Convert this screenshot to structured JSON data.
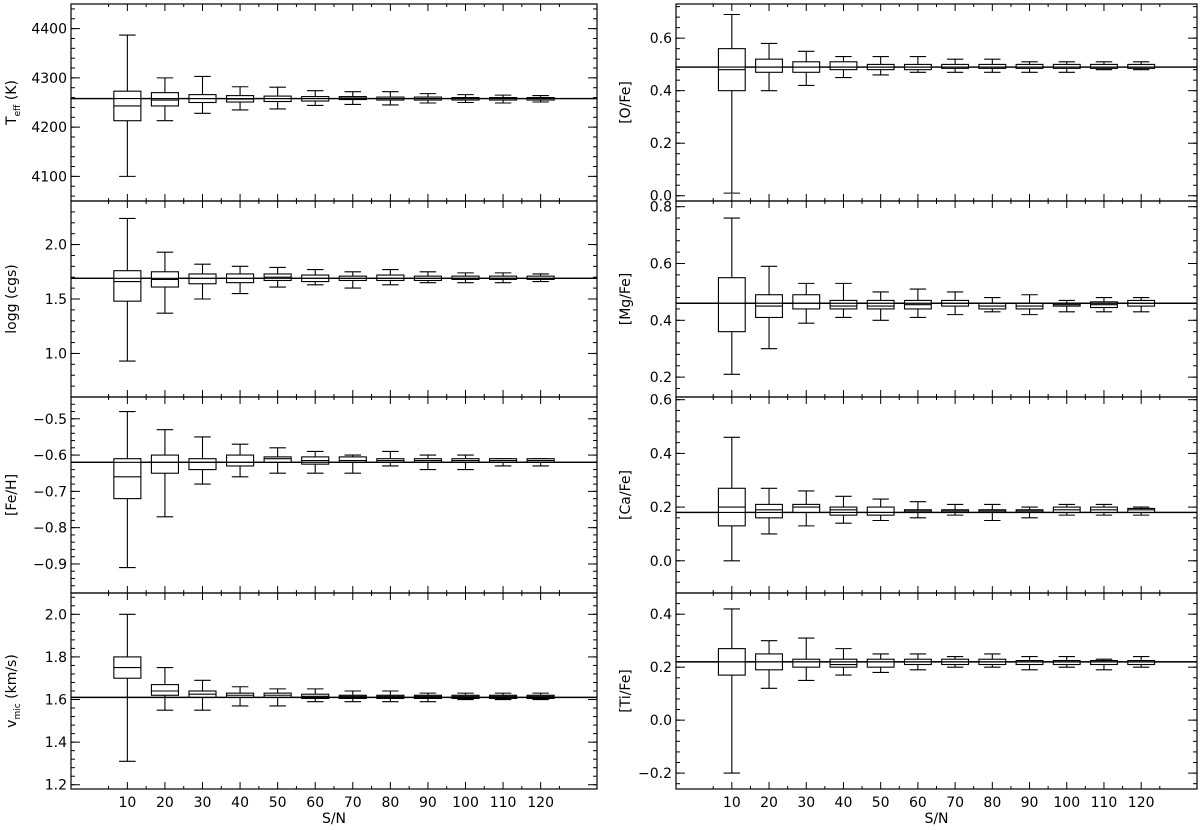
{
  "figure": {
    "x_label": "S/N",
    "x_ticks": [
      "10",
      "20",
      "30",
      "40",
      "50",
      "60",
      "70",
      "80",
      "90",
      "100",
      "110",
      "120"
    ]
  },
  "chart_data": [
    {
      "type": "box",
      "ylabel": "T_eff (K)",
      "ylabel_main": "T",
      "ylabel_sub": "eff",
      "ylabel_suffix": " (K)",
      "ylim": [
        4050,
        4450
      ],
      "yticks": [
        4100,
        4200,
        4300,
        4400
      ],
      "ytick_labels": [
        "4100",
        "4200",
        "4300",
        "4400"
      ],
      "reference": 4258,
      "categories": [
        "10",
        "20",
        "30",
        "40",
        "50",
        "60",
        "70",
        "80",
        "90",
        "100",
        "110",
        "120"
      ],
      "boxes": [
        {
          "min": 4100,
          "q1": 4213,
          "median": 4243,
          "q3": 4273,
          "max": 4387
        },
        {
          "min": 4213,
          "q1": 4243,
          "median": 4255,
          "q3": 4270,
          "max": 4300
        },
        {
          "min": 4228,
          "q1": 4250,
          "median": 4258,
          "q3": 4266,
          "max": 4303
        },
        {
          "min": 4235,
          "q1": 4251,
          "median": 4257,
          "q3": 4264,
          "max": 4282
        },
        {
          "min": 4237,
          "q1": 4252,
          "median": 4258,
          "q3": 4263,
          "max": 4281
        },
        {
          "min": 4244,
          "q1": 4253,
          "median": 4258,
          "q3": 4262,
          "max": 4274
        },
        {
          "min": 4246,
          "q1": 4256,
          "median": 4259,
          "q3": 4262,
          "max": 4272
        },
        {
          "min": 4245,
          "q1": 4255,
          "median": 4258,
          "q3": 4261,
          "max": 4272
        },
        {
          "min": 4249,
          "q1": 4255,
          "median": 4258,
          "q3": 4261,
          "max": 4268
        },
        {
          "min": 4250,
          "q1": 4255,
          "median": 4258,
          "q3": 4260,
          "max": 4266
        },
        {
          "min": 4249,
          "q1": 4255,
          "median": 4258,
          "q3": 4260,
          "max": 4265
        },
        {
          "min": 4251,
          "q1": 4255,
          "median": 4258,
          "q3": 4260,
          "max": 4264
        }
      ]
    },
    {
      "type": "box",
      "ylabel": "logg (cgs)",
      "ylabel_main": "logg (cgs)",
      "ylabel_sub": "",
      "ylabel_suffix": "",
      "ylim": [
        0.6,
        2.4
      ],
      "yticks": [
        1.0,
        1.5,
        2.0
      ],
      "ytick_labels": [
        "1.0",
        "1.5",
        "2.0"
      ],
      "reference": 1.69,
      "categories": [
        "10",
        "20",
        "30",
        "40",
        "50",
        "60",
        "70",
        "80",
        "90",
        "100",
        "110",
        "120"
      ],
      "boxes": [
        {
          "min": 0.93,
          "q1": 1.48,
          "median": 1.66,
          "q3": 1.76,
          "max": 2.24
        },
        {
          "min": 1.37,
          "q1": 1.61,
          "median": 1.68,
          "q3": 1.75,
          "max": 1.93
        },
        {
          "min": 1.5,
          "q1": 1.64,
          "median": 1.69,
          "q3": 1.73,
          "max": 1.82
        },
        {
          "min": 1.55,
          "q1": 1.65,
          "median": 1.69,
          "q3": 1.73,
          "max": 1.8
        },
        {
          "min": 1.61,
          "q1": 1.67,
          "median": 1.7,
          "q3": 1.73,
          "max": 1.79
        },
        {
          "min": 1.63,
          "q1": 1.66,
          "median": 1.69,
          "q3": 1.72,
          "max": 1.77
        },
        {
          "min": 1.6,
          "q1": 1.67,
          "median": 1.69,
          "q3": 1.71,
          "max": 1.75
        },
        {
          "min": 1.63,
          "q1": 1.67,
          "median": 1.69,
          "q3": 1.72,
          "max": 1.77
        },
        {
          "min": 1.65,
          "q1": 1.67,
          "median": 1.69,
          "q3": 1.71,
          "max": 1.75
        },
        {
          "min": 1.65,
          "q1": 1.68,
          "median": 1.69,
          "q3": 1.71,
          "max": 1.74
        },
        {
          "min": 1.65,
          "q1": 1.68,
          "median": 1.69,
          "q3": 1.71,
          "max": 1.74
        },
        {
          "min": 1.66,
          "q1": 1.68,
          "median": 1.69,
          "q3": 1.71,
          "max": 1.73
        }
      ]
    },
    {
      "type": "box",
      "ylabel": "[Fe/H]",
      "ylabel_main": "[Fe/H]",
      "ylabel_sub": "",
      "ylabel_suffix": "",
      "ylim": [
        -0.98,
        -0.44
      ],
      "yticks": [
        -0.9,
        -0.8,
        -0.7,
        -0.6,
        -0.5
      ],
      "ytick_labels": [
        "−0.9",
        "−0.8",
        "−0.7",
        "−0.6",
        "−0.5"
      ],
      "reference": -0.62,
      "categories": [
        "10",
        "20",
        "30",
        "40",
        "50",
        "60",
        "70",
        "80",
        "90",
        "100",
        "110",
        "120"
      ],
      "boxes": [
        {
          "min": -0.91,
          "q1": -0.72,
          "median": -0.66,
          "q3": -0.61,
          "max": -0.48
        },
        {
          "min": -0.77,
          "q1": -0.65,
          "median": -0.62,
          "q3": -0.6,
          "max": -0.53
        },
        {
          "min": -0.68,
          "q1": -0.64,
          "median": -0.62,
          "q3": -0.61,
          "max": -0.55
        },
        {
          "min": -0.66,
          "q1": -0.63,
          "median": -0.62,
          "q3": -0.6,
          "max": -0.57
        },
        {
          "min": -0.65,
          "q1": -0.62,
          "median": -0.61,
          "q3": -0.605,
          "max": -0.58
        },
        {
          "min": -0.65,
          "q1": -0.625,
          "median": -0.615,
          "q3": -0.605,
          "max": -0.59
        },
        {
          "min": -0.65,
          "q1": -0.62,
          "median": -0.615,
          "q3": -0.605,
          "max": -0.6
        },
        {
          "min": -0.63,
          "q1": -0.62,
          "median": -0.615,
          "q3": -0.61,
          "max": -0.59
        },
        {
          "min": -0.64,
          "q1": -0.62,
          "median": -0.615,
          "q3": -0.61,
          "max": -0.6
        },
        {
          "min": -0.64,
          "q1": -0.62,
          "median": -0.615,
          "q3": -0.61,
          "max": -0.6
        },
        {
          "min": -0.63,
          "q1": -0.62,
          "median": -0.615,
          "q3": -0.61,
          "max": -0.61
        },
        {
          "min": -0.63,
          "q1": -0.62,
          "median": -0.615,
          "q3": -0.61,
          "max": -0.61
        }
      ]
    },
    {
      "type": "box",
      "ylabel": "v_mic (km/s)",
      "ylabel_main": "v",
      "ylabel_sub": "mic",
      "ylabel_suffix": " (km/s)",
      "ylim": [
        1.18,
        2.1
      ],
      "yticks": [
        1.2,
        1.4,
        1.6,
        1.8,
        2.0
      ],
      "ytick_labels": [
        "1.2",
        "1.4",
        "1.6",
        "1.8",
        "2.0"
      ],
      "reference": 1.61,
      "categories": [
        "10",
        "20",
        "30",
        "40",
        "50",
        "60",
        "70",
        "80",
        "90",
        "100",
        "110",
        "120"
      ],
      "boxes": [
        {
          "min": 1.31,
          "q1": 1.7,
          "median": 1.75,
          "q3": 1.8,
          "max": 2.0
        },
        {
          "min": 1.55,
          "q1": 1.62,
          "median": 1.64,
          "q3": 1.67,
          "max": 1.75
        },
        {
          "min": 1.55,
          "q1": 1.61,
          "median": 1.625,
          "q3": 1.64,
          "max": 1.69
        },
        {
          "min": 1.57,
          "q1": 1.61,
          "median": 1.62,
          "q3": 1.63,
          "max": 1.66
        },
        {
          "min": 1.57,
          "q1": 1.61,
          "median": 1.62,
          "q3": 1.63,
          "max": 1.65
        },
        {
          "min": 1.59,
          "q1": 1.605,
          "median": 1.615,
          "q3": 1.625,
          "max": 1.65
        },
        {
          "min": 1.59,
          "q1": 1.605,
          "median": 1.615,
          "q3": 1.62,
          "max": 1.64
        },
        {
          "min": 1.59,
          "q1": 1.605,
          "median": 1.615,
          "q3": 1.62,
          "max": 1.64
        },
        {
          "min": 1.59,
          "q1": 1.605,
          "median": 1.615,
          "q3": 1.62,
          "max": 1.63
        },
        {
          "min": 1.6,
          "q1": 1.605,
          "median": 1.615,
          "q3": 1.62,
          "max": 1.63
        },
        {
          "min": 1.6,
          "q1": 1.605,
          "median": 1.615,
          "q3": 1.62,
          "max": 1.63
        },
        {
          "min": 1.6,
          "q1": 1.605,
          "median": 1.615,
          "q3": 1.62,
          "max": 1.63
        }
      ]
    },
    {
      "type": "box",
      "ylabel": "[O/Fe]",
      "ylabel_main": "[O/Fe]",
      "ylabel_sub": "",
      "ylabel_suffix": "",
      "ylim": [
        -0.02,
        0.73
      ],
      "yticks": [
        0.0,
        0.2,
        0.4,
        0.6
      ],
      "ytick_labels": [
        "0.0",
        "0.2",
        "0.4",
        "0.6"
      ],
      "reference": 0.49,
      "categories": [
        "10",
        "20",
        "30",
        "40",
        "50",
        "60",
        "70",
        "80",
        "90",
        "100",
        "110",
        "120"
      ],
      "boxes": [
        {
          "min": 0.01,
          "q1": 0.4,
          "median": 0.48,
          "q3": 0.56,
          "max": 0.69
        },
        {
          "min": 0.4,
          "q1": 0.47,
          "median": 0.49,
          "q3": 0.52,
          "max": 0.58
        },
        {
          "min": 0.42,
          "q1": 0.47,
          "median": 0.49,
          "q3": 0.51,
          "max": 0.55
        },
        {
          "min": 0.45,
          "q1": 0.48,
          "median": 0.49,
          "q3": 0.51,
          "max": 0.53
        },
        {
          "min": 0.46,
          "q1": 0.48,
          "median": 0.49,
          "q3": 0.5,
          "max": 0.53
        },
        {
          "min": 0.47,
          "q1": 0.48,
          "median": 0.49,
          "q3": 0.5,
          "max": 0.53
        },
        {
          "min": 0.47,
          "q1": 0.485,
          "median": 0.49,
          "q3": 0.5,
          "max": 0.52
        },
        {
          "min": 0.47,
          "q1": 0.485,
          "median": 0.49,
          "q3": 0.5,
          "max": 0.52
        },
        {
          "min": 0.47,
          "q1": 0.485,
          "median": 0.49,
          "q3": 0.5,
          "max": 0.51
        },
        {
          "min": 0.47,
          "q1": 0.485,
          "median": 0.49,
          "q3": 0.5,
          "max": 0.51
        },
        {
          "min": 0.48,
          "q1": 0.485,
          "median": 0.49,
          "q3": 0.5,
          "max": 0.51
        },
        {
          "min": 0.48,
          "q1": 0.485,
          "median": 0.49,
          "q3": 0.5,
          "max": 0.51
        }
      ]
    },
    {
      "type": "box",
      "ylabel": "[Mg/Fe]",
      "ylabel_main": "[Mg/Fe]",
      "ylabel_sub": "",
      "ylabel_suffix": "",
      "ylim": [
        0.13,
        0.82
      ],
      "yticks": [
        0.2,
        0.4,
        0.6,
        0.8
      ],
      "ytick_labels": [
        "0.2",
        "0.4",
        "0.6",
        "0.8"
      ],
      "reference": 0.46,
      "categories": [
        "10",
        "20",
        "30",
        "40",
        "50",
        "60",
        "70",
        "80",
        "90",
        "100",
        "110",
        "120"
      ],
      "boxes": [
        {
          "min": 0.21,
          "q1": 0.36,
          "median": 0.46,
          "q3": 0.55,
          "max": 0.76
        },
        {
          "min": 0.3,
          "q1": 0.41,
          "median": 0.45,
          "q3": 0.49,
          "max": 0.59
        },
        {
          "min": 0.39,
          "q1": 0.44,
          "median": 0.46,
          "q3": 0.49,
          "max": 0.53
        },
        {
          "min": 0.41,
          "q1": 0.44,
          "median": 0.45,
          "q3": 0.47,
          "max": 0.53
        },
        {
          "min": 0.4,
          "q1": 0.44,
          "median": 0.45,
          "q3": 0.47,
          "max": 0.5
        },
        {
          "min": 0.41,
          "q1": 0.44,
          "median": 0.455,
          "q3": 0.47,
          "max": 0.51
        },
        {
          "min": 0.42,
          "q1": 0.45,
          "median": 0.46,
          "q3": 0.47,
          "max": 0.5
        },
        {
          "min": 0.43,
          "q1": 0.44,
          "median": 0.45,
          "q3": 0.46,
          "max": 0.48
        },
        {
          "min": 0.42,
          "q1": 0.44,
          "median": 0.45,
          "q3": 0.46,
          "max": 0.49
        },
        {
          "min": 0.43,
          "q1": 0.45,
          "median": 0.455,
          "q3": 0.46,
          "max": 0.47
        },
        {
          "min": 0.43,
          "q1": 0.445,
          "median": 0.455,
          "q3": 0.465,
          "max": 0.48
        },
        {
          "min": 0.43,
          "q1": 0.45,
          "median": 0.46,
          "q3": 0.47,
          "max": 0.48
        }
      ]
    },
    {
      "type": "box",
      "ylabel": "[Ca/Fe]",
      "ylabel_main": "[Ca/Fe]",
      "ylabel_sub": "",
      "ylabel_suffix": "",
      "ylim": [
        -0.12,
        0.61
      ],
      "yticks": [
        0.0,
        0.2,
        0.4,
        0.6
      ],
      "ytick_labels": [
        "0.0",
        "0.2",
        "0.4",
        "0.6"
      ],
      "reference": 0.18,
      "categories": [
        "10",
        "20",
        "30",
        "40",
        "50",
        "60",
        "70",
        "80",
        "90",
        "100",
        "110",
        "120"
      ],
      "boxes": [
        {
          "min": 0.0,
          "q1": 0.13,
          "median": 0.2,
          "q3": 0.27,
          "max": 0.46
        },
        {
          "min": 0.1,
          "q1": 0.16,
          "median": 0.19,
          "q3": 0.21,
          "max": 0.27
        },
        {
          "min": 0.13,
          "q1": 0.18,
          "median": 0.2,
          "q3": 0.21,
          "max": 0.26
        },
        {
          "min": 0.14,
          "q1": 0.17,
          "median": 0.19,
          "q3": 0.2,
          "max": 0.24
        },
        {
          "min": 0.15,
          "q1": 0.17,
          "median": 0.18,
          "q3": 0.2,
          "max": 0.23
        },
        {
          "min": 0.16,
          "q1": 0.18,
          "median": 0.185,
          "q3": 0.19,
          "max": 0.22
        },
        {
          "min": 0.17,
          "q1": 0.18,
          "median": 0.185,
          "q3": 0.19,
          "max": 0.21
        },
        {
          "min": 0.15,
          "q1": 0.18,
          "median": 0.185,
          "q3": 0.19,
          "max": 0.21
        },
        {
          "min": 0.16,
          "q1": 0.18,
          "median": 0.185,
          "q3": 0.19,
          "max": 0.2
        },
        {
          "min": 0.17,
          "q1": 0.18,
          "median": 0.19,
          "q3": 0.2,
          "max": 0.21
        },
        {
          "min": 0.17,
          "q1": 0.18,
          "median": 0.19,
          "q3": 0.2,
          "max": 0.21
        },
        {
          "min": 0.17,
          "q1": 0.18,
          "median": 0.19,
          "q3": 0.195,
          "max": 0.2
        }
      ]
    },
    {
      "type": "box",
      "ylabel": "[Ti/Fe]",
      "ylabel_main": "[Ti/Fe]",
      "ylabel_sub": "",
      "ylabel_suffix": "",
      "ylim": [
        -0.26,
        0.48
      ],
      "yticks": [
        -0.2,
        0.0,
        0.2,
        0.4
      ],
      "ytick_labels": [
        "−0.2",
        "0.0",
        "0.2",
        "0.4"
      ],
      "reference": 0.22,
      "categories": [
        "10",
        "20",
        "30",
        "40",
        "50",
        "60",
        "70",
        "80",
        "90",
        "100",
        "110",
        "120"
      ],
      "boxes": [
        {
          "min": -0.2,
          "q1": 0.17,
          "median": 0.22,
          "q3": 0.27,
          "max": 0.42
        },
        {
          "min": 0.12,
          "q1": 0.19,
          "median": 0.22,
          "q3": 0.25,
          "max": 0.3
        },
        {
          "min": 0.15,
          "q1": 0.2,
          "median": 0.22,
          "q3": 0.23,
          "max": 0.31
        },
        {
          "min": 0.17,
          "q1": 0.2,
          "median": 0.21,
          "q3": 0.23,
          "max": 0.27
        },
        {
          "min": 0.18,
          "q1": 0.2,
          "median": 0.22,
          "q3": 0.23,
          "max": 0.25
        },
        {
          "min": 0.19,
          "q1": 0.21,
          "median": 0.22,
          "q3": 0.23,
          "max": 0.25
        },
        {
          "min": 0.2,
          "q1": 0.21,
          "median": 0.22,
          "q3": 0.23,
          "max": 0.24
        },
        {
          "min": 0.2,
          "q1": 0.21,
          "median": 0.22,
          "q3": 0.23,
          "max": 0.25
        },
        {
          "min": 0.19,
          "q1": 0.21,
          "median": 0.22,
          "q3": 0.225,
          "max": 0.24
        },
        {
          "min": 0.2,
          "q1": 0.21,
          "median": 0.22,
          "q3": 0.225,
          "max": 0.24
        },
        {
          "min": 0.19,
          "q1": 0.21,
          "median": 0.22,
          "q3": 0.225,
          "max": 0.23
        },
        {
          "min": 0.2,
          "q1": 0.21,
          "median": 0.22,
          "q3": 0.225,
          "max": 0.24
        }
      ]
    }
  ]
}
